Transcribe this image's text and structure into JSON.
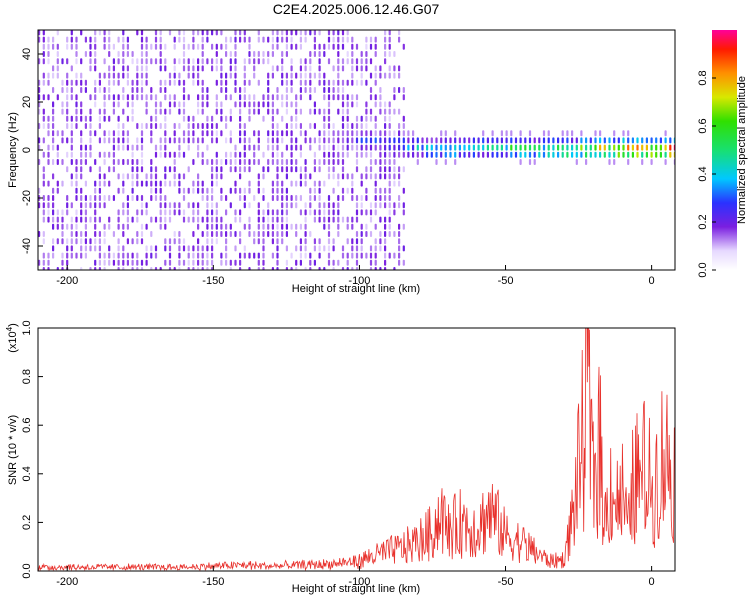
{
  "title": "C2E4.2025.006.12.46.G07",
  "colorbar": {
    "label": "Normalized spectral amplitude",
    "ticks": [
      "0.0",
      "0.2",
      "0.4",
      "0.6",
      "0.8"
    ],
    "tick_values": [
      0.0,
      0.2,
      0.4,
      0.6,
      0.8
    ],
    "range": [
      0,
      1
    ]
  },
  "chart_data": [
    {
      "type": "heatmap",
      "title": "C2E4.2025.006.12.46.G07",
      "xlabel": "Height of straight line (km)",
      "ylabel": "Frequency (Hz)",
      "xlim": [
        -210,
        8
      ],
      "ylim": [
        -50,
        50
      ],
      "x_ticks": [
        -200,
        -150,
        -100,
        -50,
        0
      ],
      "x_tick_labels": [
        "-200",
        "-150",
        "-100",
        "-50",
        "0"
      ],
      "y_ticks": [
        -40,
        -20,
        0,
        20,
        40
      ],
      "y_tick_labels": [
        "-40",
        "-20",
        "0",
        "20",
        "40"
      ],
      "colorscale": "rainbow (purple=low, red/magenta=high)",
      "signal_track": {
        "description": "narrow band near 0 Hz with increasing amplitude toward 0 km",
        "x": [
          -110,
          -100,
          -90,
          -80,
          -70,
          -60,
          -50,
          -40,
          -30,
          -20,
          -10,
          0,
          8
        ],
        "frequency": [
          5,
          4,
          3,
          1,
          0,
          1,
          1,
          0,
          0,
          0,
          0,
          0,
          0
        ],
        "amplitude": [
          0.15,
          0.25,
          0.3,
          0.4,
          0.45,
          0.45,
          0.5,
          0.55,
          0.6,
          0.75,
          0.85,
          0.95,
          0.95
        ]
      },
      "noise_region": {
        "x_range": [
          -210,
          -90
        ],
        "level": 0.1
      }
    },
    {
      "type": "line",
      "xlabel": "Height of straight line (km)",
      "ylabel": "SNR (10 * v/v)",
      "yscale_label": "(x10",
      "yscale_exp": "4",
      "yscale_suffix": ")",
      "xlim": [
        -210,
        8
      ],
      "ylim": [
        0,
        1.0
      ],
      "x_ticks": [
        -200,
        -150,
        -100,
        -50,
        0
      ],
      "x_tick_labels": [
        "-200",
        "-150",
        "-100",
        "-50",
        "0"
      ],
      "y_ticks": [
        0.0,
        0.2,
        0.4,
        0.6,
        0.8,
        1.0
      ],
      "y_tick_labels": [
        "0.0",
        "0.2",
        "0.4",
        "0.6",
        "0.8",
        "1.0"
      ],
      "color": "#e8312c",
      "series": [
        {
          "x": [
            -210,
            -200,
            -190,
            -180,
            -170,
            -160,
            -150,
            -140,
            -130,
            -120,
            -110,
            -100,
            -95,
            -90,
            -85,
            -80,
            -75,
            -72,
            -70,
            -65,
            -60,
            -55,
            -50,
            -45,
            -40,
            -35,
            -30,
            -28,
            -26,
            -24,
            -22,
            -20,
            -18,
            -16,
            -14,
            -12,
            -10,
            -8,
            -6,
            -4,
            -2,
            0,
            2,
            4,
            6,
            8
          ],
          "y": [
            0.02,
            0.02,
            0.02,
            0.02,
            0.02,
            0.02,
            0.025,
            0.03,
            0.025,
            0.03,
            0.035,
            0.05,
            0.08,
            0.1,
            0.12,
            0.15,
            0.2,
            0.3,
            0.2,
            0.25,
            0.22,
            0.3,
            0.18,
            0.15,
            0.1,
            0.05,
            0.06,
            0.2,
            0.4,
            0.6,
            1.0,
            0.45,
            0.7,
            0.25,
            0.45,
            0.35,
            0.4,
            0.2,
            0.5,
            0.45,
            0.55,
            0.4,
            0.5,
            0.6,
            0.55,
            0.5
          ]
        }
      ]
    }
  ]
}
